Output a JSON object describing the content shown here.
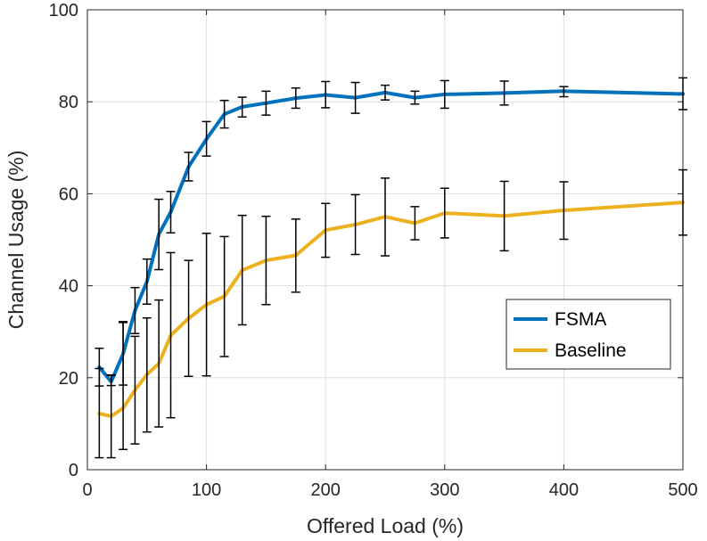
{
  "chart_data": {
    "type": "line",
    "title": "",
    "xlabel": "Offered Load (%)",
    "ylabel": "Channel Usage (%)",
    "xlim": [
      0,
      500
    ],
    "ylim": [
      0,
      100
    ],
    "xticks": [
      0,
      100,
      200,
      300,
      400,
      500
    ],
    "yticks": [
      0,
      20,
      40,
      60,
      80,
      100
    ],
    "grid": true,
    "legend_position": "right",
    "series": [
      {
        "name": "FSMA",
        "color": "#0072BD",
        "x": [
          10,
          20,
          30,
          40,
          50,
          60,
          70,
          85,
          100,
          115,
          130,
          150,
          175,
          200,
          225,
          250,
          275,
          300,
          350,
          400,
          500
        ],
        "y": [
          22.3,
          19.1,
          25.2,
          34.6,
          40.9,
          51.2,
          56.0,
          65.9,
          71.9,
          77.3,
          78.9,
          79.7,
          80.8,
          81.5,
          80.9,
          82.0,
          80.9,
          81.6,
          81.9,
          82.3,
          81.7
        ],
        "err_low": [
          18.2,
          18.3,
          18.4,
          29.6,
          36.0,
          43.5,
          51.5,
          62.8,
          68.2,
          74.3,
          76.7,
          77.1,
          78.6,
          78.7,
          77.5,
          80.4,
          79.5,
          78.6,
          79.3,
          81.1,
          78.3
        ],
        "err_high": [
          26.4,
          20.5,
          32.0,
          39.6,
          45.8,
          58.8,
          60.5,
          69.0,
          75.7,
          80.3,
          81.0,
          82.3,
          83.0,
          84.4,
          84.2,
          83.6,
          82.3,
          84.6,
          84.5,
          83.3,
          85.2
        ]
      },
      {
        "name": "Baseline",
        "color": "#EDB120",
        "x": [
          10,
          20,
          30,
          40,
          50,
          60,
          70,
          85,
          100,
          115,
          130,
          150,
          175,
          200,
          225,
          250,
          275,
          300,
          350,
          400,
          500
        ],
        "y": [
          12.2,
          11.6,
          13.4,
          17.3,
          20.7,
          23.1,
          29.2,
          32.9,
          35.9,
          37.7,
          43.4,
          45.5,
          46.6,
          52.1,
          53.3,
          55.0,
          53.6,
          55.8,
          55.2,
          56.4,
          58.1
        ],
        "err_low": [
          2.6,
          2.6,
          4.4,
          5.6,
          8.2,
          9.3,
          11.3,
          20.3,
          20.4,
          24.6,
          31.5,
          35.9,
          38.6,
          46.2,
          46.8,
          46.5,
          50.0,
          50.4,
          47.6,
          50.1,
          51.0
        ],
        "err_high": [
          22.0,
          20.6,
          32.2,
          29.0,
          33.0,
          36.9,
          47.2,
          45.5,
          51.4,
          50.7,
          55.3,
          55.1,
          54.5,
          57.9,
          59.8,
          63.4,
          57.2,
          61.2,
          62.7,
          62.6,
          65.2
        ]
      }
    ]
  }
}
